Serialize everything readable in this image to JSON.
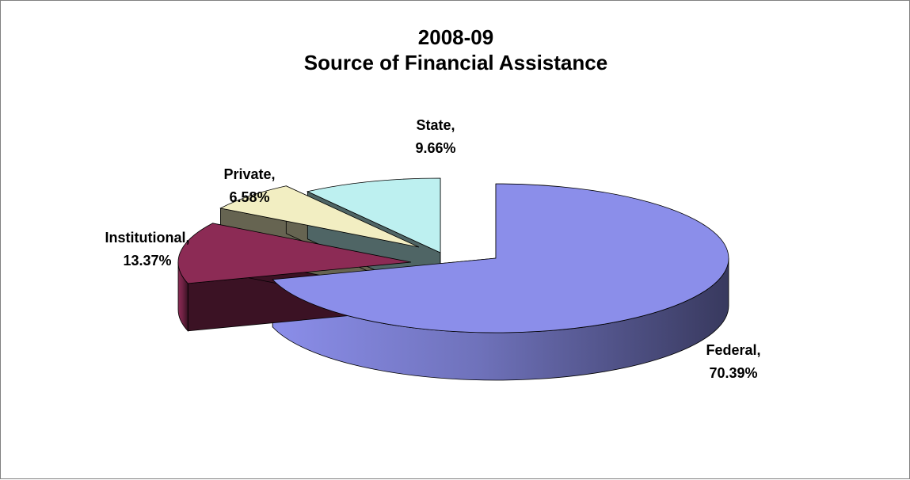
{
  "chart_data": {
    "type": "pie",
    "title_line1": "2008-09",
    "title_line2": "Source of Financial Assistance",
    "slices": [
      {
        "name": "Federal",
        "label_name": "Federal,",
        "label_value": "70.39%",
        "value": 70.39,
        "color": "#8b8eea"
      },
      {
        "name": "Institutional",
        "label_name": "Institutional,",
        "label_value": "13.37%",
        "value": 13.37,
        "color": "#8c2b55"
      },
      {
        "name": "Private",
        "label_name": "Private,",
        "label_value": "6.58%",
        "value": 6.58,
        "color": "#f2eec2"
      },
      {
        "name": "State",
        "label_name": "State,",
        "label_value": "9.66%",
        "value": 9.66,
        "color": "#bdf0f0"
      }
    ]
  }
}
